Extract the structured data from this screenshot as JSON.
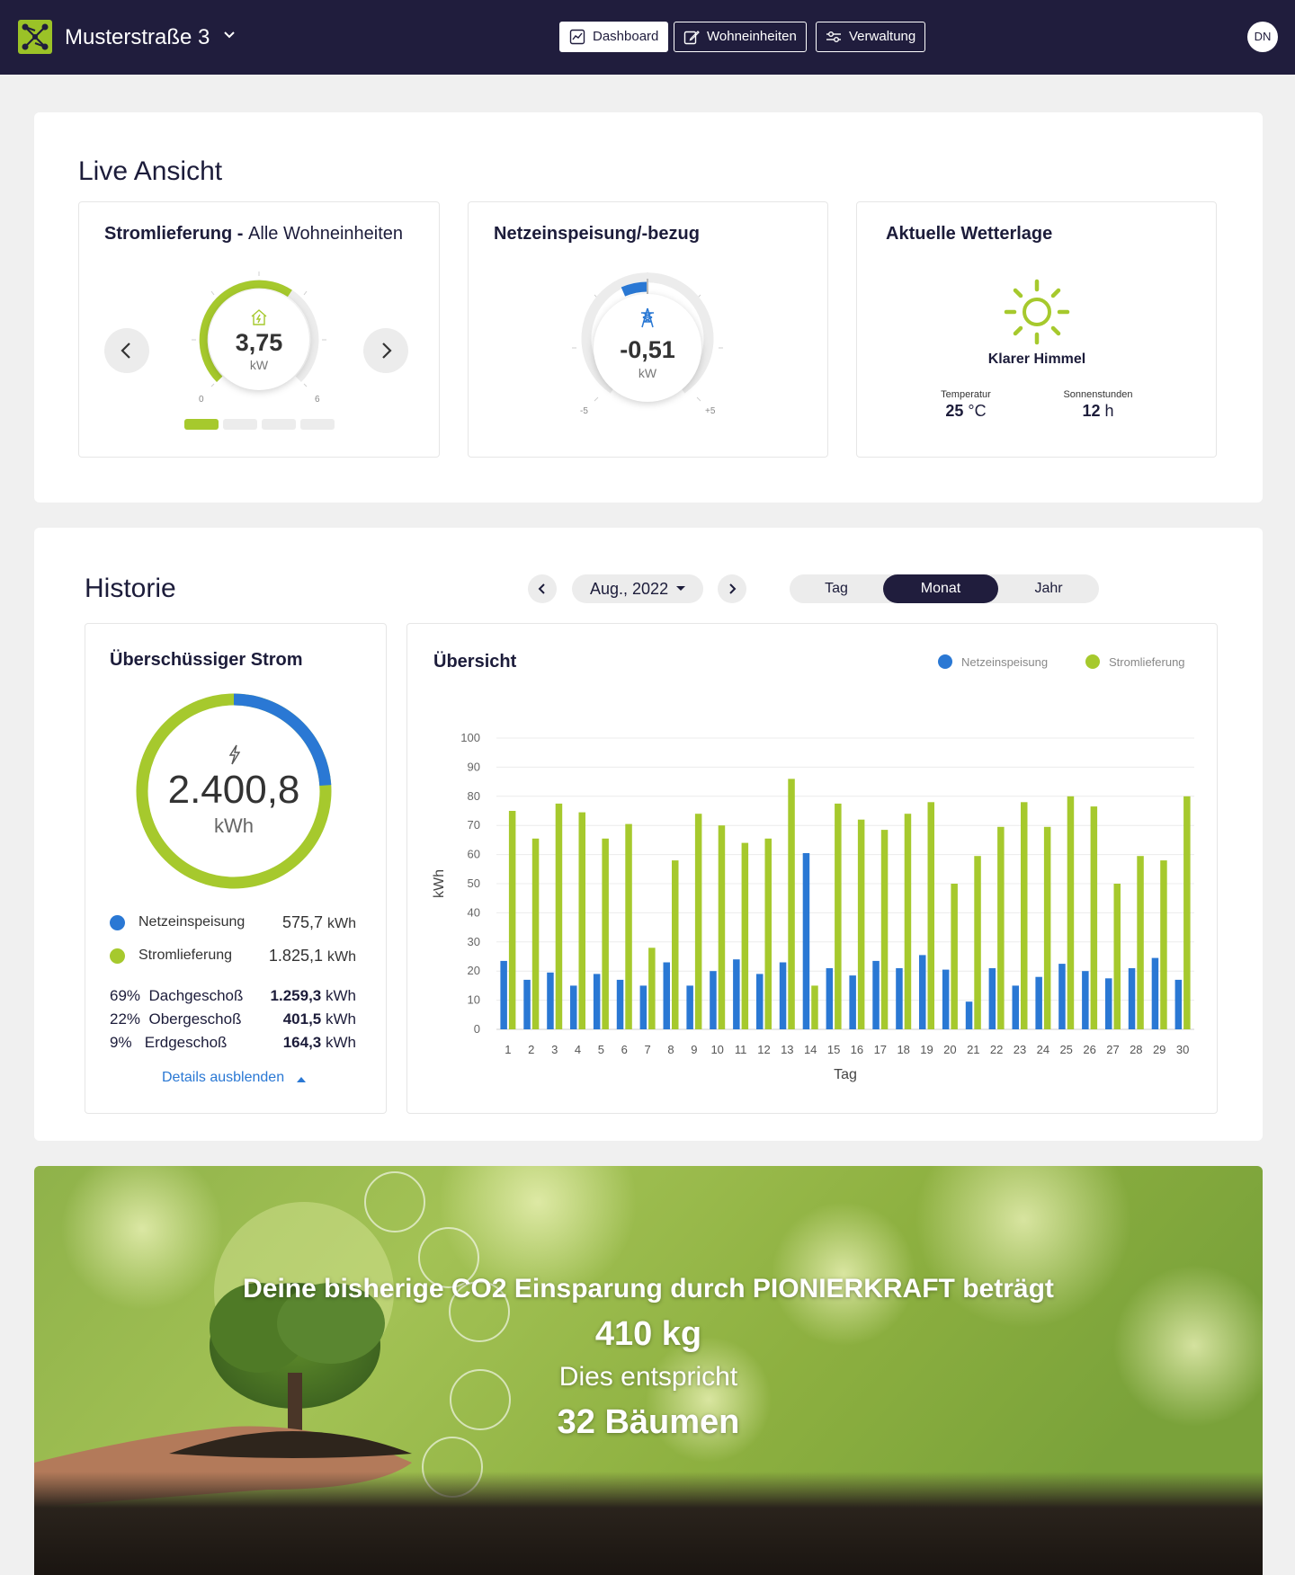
{
  "header": {
    "property_name": "Musterstraße 3",
    "nav": [
      {
        "label": "Dashboard",
        "active": true
      },
      {
        "label": "Wohneinheiten",
        "active": false
      },
      {
        "label": "Verwaltung",
        "active": false
      }
    ],
    "user_initials": "DN"
  },
  "live": {
    "title": "Live Ansicht",
    "supply": {
      "title_bold": "Stromlieferung",
      "title_sep": " - ",
      "title_rest": "Alle Wohneinheiten",
      "value": "3,75",
      "unit": "kW",
      "scale_min": "0",
      "scale_max": "6",
      "gauge_fraction": 0.625,
      "pager_pages": 4,
      "pager_active": 0
    },
    "grid": {
      "title": "Netzeinspeisung/-bezug",
      "value": "-0,51",
      "unit": "kW",
      "scale_min": "-5",
      "scale_max": "+5"
    },
    "weather": {
      "title": "Aktuelle Wetterlage",
      "condition": "Klarer Himmel",
      "temp_label": "Temperatur",
      "temp_value": "25",
      "temp_unit": "°C",
      "sun_label": "Sonnenstunden",
      "sun_value": "12",
      "sun_unit": "h"
    }
  },
  "history": {
    "title": "Historie",
    "period": "Aug., 2022",
    "tabs": [
      {
        "label": "Tag",
        "active": false
      },
      {
        "label": "Monat",
        "active": true
      },
      {
        "label": "Jahr",
        "active": false
      }
    ],
    "surplus": {
      "title": "Überschüssiger Strom",
      "total": "2.400,8",
      "unit": "kWh",
      "legend": [
        {
          "name": "Netzeinspeisung",
          "value": "575,7",
          "unit": "kWh",
          "color": "#2a78d4"
        },
        {
          "name": "Stromlieferung",
          "value": "1.825,1",
          "unit": "kWh",
          "color": "#a6c92d"
        }
      ],
      "floors": [
        {
          "pct": "69%",
          "name": "Dachgeschoß",
          "value": "1.259,3",
          "unit": "kWh"
        },
        {
          "pct": "22%",
          "name": "Obergeschoß",
          "value": "401,5",
          "unit": "kWh"
        },
        {
          "pct": "9%",
          "name": "Erdgeschoß",
          "value": "164,3",
          "unit": "kWh"
        }
      ],
      "details_link": "Details ausblenden"
    },
    "overview_title": "Übersicht"
  },
  "co2": {
    "line1": "Deine bisherige CO2 Einsparung durch PIONIERKRAFT beträgt",
    "amount": "410 kg",
    "line3": "Dies entspricht",
    "trees": "32 Bäumen"
  },
  "colors": {
    "navy": "#201d3d",
    "green": "#a6c92d",
    "blue": "#2a78d4"
  },
  "chart_data": {
    "type": "bar",
    "xlabel": "Tag",
    "ylabel": "kWh",
    "ylim": [
      0,
      100
    ],
    "yticks": [
      0,
      10,
      20,
      30,
      40,
      50,
      60,
      70,
      80,
      90,
      100
    ],
    "grid": true,
    "legend_position": "top-right",
    "categories": [
      "1",
      "2",
      "3",
      "4",
      "5",
      "6",
      "7",
      "8",
      "9",
      "10",
      "11",
      "12",
      "13",
      "14",
      "15",
      "16",
      "17",
      "18",
      "19",
      "20",
      "21",
      "22",
      "23",
      "24",
      "25",
      "26",
      "27",
      "28",
      "29",
      "30"
    ],
    "series": [
      {
        "name": "Netzeinspeisung",
        "color": "#2a78d4",
        "values": [
          23.5,
          17,
          19.5,
          15,
          19,
          17,
          15,
          23,
          15,
          20,
          24,
          19,
          23,
          60.5,
          21,
          18.5,
          23.5,
          21,
          25.5,
          20.5,
          9.5,
          21,
          15,
          18,
          22.5,
          20,
          17.5,
          21,
          24.5,
          17
        ]
      },
      {
        "name": "Stromlieferung",
        "color": "#a6c92d",
        "values": [
          75,
          65.5,
          77.5,
          74.5,
          65.5,
          70.5,
          28,
          58,
          74,
          70,
          64,
          65.5,
          86,
          15,
          77.5,
          72,
          68.5,
          74,
          78,
          50,
          59.5,
          69.5,
          78,
          69.5,
          80,
          76.5,
          50,
          59.5,
          58,
          80
        ]
      }
    ]
  }
}
